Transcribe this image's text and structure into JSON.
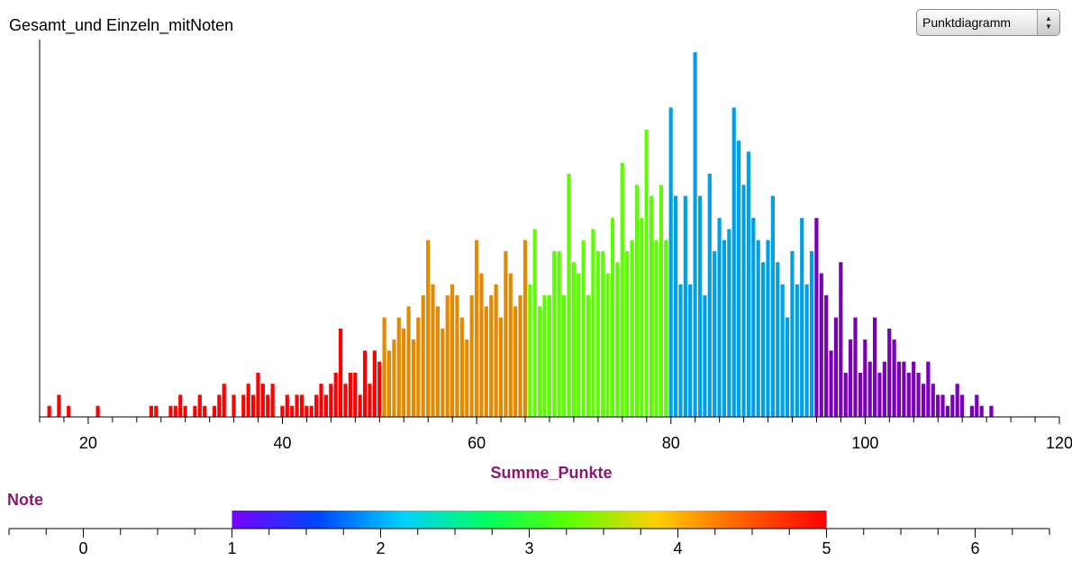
{
  "title": "Gesamt_und Einzeln_mitNoten",
  "dropdown": {
    "selected": "Punktdiagramm"
  },
  "chart_data": {
    "type": "bar",
    "title": "Gesamt_und Einzeln_mitNoten",
    "xlabel": "Summe_Punkte",
    "ylabel": "",
    "xlim": [
      15,
      120
    ],
    "x_ticks": [
      20,
      40,
      60,
      80,
      100,
      120
    ],
    "bin_width": 0.5,
    "bins": [
      [
        16,
        1
      ],
      [
        17,
        2
      ],
      [
        18,
        1
      ],
      [
        21,
        1
      ],
      [
        26.5,
        1
      ],
      [
        27,
        1
      ],
      [
        28.5,
        1
      ],
      [
        29,
        1
      ],
      [
        29.5,
        2
      ],
      [
        30,
        1
      ],
      [
        31,
        1
      ],
      [
        31.5,
        2
      ],
      [
        32,
        1
      ],
      [
        33,
        1
      ],
      [
        33.5,
        2
      ],
      [
        34,
        3
      ],
      [
        35,
        2
      ],
      [
        36,
        2
      ],
      [
        36.5,
        3
      ],
      [
        37,
        2
      ],
      [
        37.5,
        4
      ],
      [
        38,
        3
      ],
      [
        38.5,
        2
      ],
      [
        39,
        3
      ],
      [
        40,
        1
      ],
      [
        40.5,
        2
      ],
      [
        41,
        1
      ],
      [
        41.5,
        2
      ],
      [
        42,
        2
      ],
      [
        42.5,
        1
      ],
      [
        43,
        1
      ],
      [
        43.5,
        2
      ],
      [
        44,
        3
      ],
      [
        44.5,
        2
      ],
      [
        45,
        3
      ],
      [
        45.5,
        4
      ],
      [
        46,
        8
      ],
      [
        46.5,
        3
      ],
      [
        47,
        4
      ],
      [
        47.5,
        4
      ],
      [
        48,
        2
      ],
      [
        48.5,
        6
      ],
      [
        49,
        3
      ],
      [
        49.5,
        6
      ],
      [
        50,
        5
      ],
      [
        50.5,
        9
      ],
      [
        51,
        6
      ],
      [
        51.5,
        7
      ],
      [
        52,
        9
      ],
      [
        52.5,
        8
      ],
      [
        53,
        10
      ],
      [
        53.5,
        7
      ],
      [
        54,
        9
      ],
      [
        54.5,
        11
      ],
      [
        55,
        16
      ],
      [
        55.5,
        12
      ],
      [
        56,
        10
      ],
      [
        56.5,
        8
      ],
      [
        57,
        11
      ],
      [
        57.5,
        12
      ],
      [
        58,
        11
      ],
      [
        58.5,
        9
      ],
      [
        59,
        7
      ],
      [
        59.5,
        11
      ],
      [
        60,
        16
      ],
      [
        60.5,
        13
      ],
      [
        61,
        10
      ],
      [
        61.5,
        11
      ],
      [
        62,
        12
      ],
      [
        62.5,
        9
      ],
      [
        63,
        15
      ],
      [
        63.5,
        13
      ],
      [
        64,
        10
      ],
      [
        64.5,
        11
      ],
      [
        65,
        16
      ],
      [
        65.5,
        12
      ],
      [
        66,
        17
      ],
      [
        66.5,
        10
      ],
      [
        67,
        11
      ],
      [
        67.5,
        11
      ],
      [
        68,
        15
      ],
      [
        68.5,
        15
      ],
      [
        69,
        11
      ],
      [
        69.5,
        22
      ],
      [
        70,
        14
      ],
      [
        70.5,
        13
      ],
      [
        71,
        16
      ],
      [
        71.5,
        11
      ],
      [
        72,
        17
      ],
      [
        72.5,
        15
      ],
      [
        73,
        15
      ],
      [
        73.5,
        13
      ],
      [
        74,
        18
      ],
      [
        74.5,
        14
      ],
      [
        75,
        23
      ],
      [
        75.5,
        15
      ],
      [
        76,
        16
      ],
      [
        76.5,
        21
      ],
      [
        77,
        18
      ],
      [
        77.5,
        26
      ],
      [
        78,
        20
      ],
      [
        78.5,
        16
      ],
      [
        79,
        21
      ],
      [
        79.5,
        16
      ],
      [
        80,
        28
      ],
      [
        80.5,
        20
      ],
      [
        81,
        12
      ],
      [
        81.5,
        20
      ],
      [
        82,
        12
      ],
      [
        82.5,
        33
      ],
      [
        83,
        20
      ],
      [
        83.5,
        11
      ],
      [
        84,
        22
      ],
      [
        84.5,
        15
      ],
      [
        85,
        18
      ],
      [
        85.5,
        16
      ],
      [
        86,
        17
      ],
      [
        86.5,
        28
      ],
      [
        87,
        25
      ],
      [
        87.5,
        21
      ],
      [
        88,
        24
      ],
      [
        88.5,
        18
      ],
      [
        89,
        16
      ],
      [
        89.5,
        14
      ],
      [
        90,
        16
      ],
      [
        90.5,
        20
      ],
      [
        91,
        14
      ],
      [
        91.5,
        12
      ],
      [
        92,
        9
      ],
      [
        92.5,
        15
      ],
      [
        93,
        12
      ],
      [
        93.5,
        18
      ],
      [
        94,
        12
      ],
      [
        94.5,
        15
      ],
      [
        95,
        18
      ],
      [
        95.5,
        13
      ],
      [
        96,
        11
      ],
      [
        96.5,
        6
      ],
      [
        97,
        9
      ],
      [
        97.5,
        14
      ],
      [
        98,
        4
      ],
      [
        98.5,
        7
      ],
      [
        99,
        9
      ],
      [
        99.5,
        4
      ],
      [
        100,
        7
      ],
      [
        100.5,
        5
      ],
      [
        101,
        9
      ],
      [
        101.5,
        4
      ],
      [
        102,
        5
      ],
      [
        102.5,
        8
      ],
      [
        103,
        7
      ],
      [
        103.5,
        5
      ],
      [
        104,
        5
      ],
      [
        104.5,
        4
      ],
      [
        105,
        5
      ],
      [
        105.5,
        4
      ],
      [
        106,
        3
      ],
      [
        106.5,
        5
      ],
      [
        107,
        3
      ],
      [
        107.5,
        2
      ],
      [
        108,
        2
      ],
      [
        108.5,
        1
      ],
      [
        109,
        2
      ],
      [
        109.5,
        3
      ],
      [
        110,
        2
      ],
      [
        111,
        1
      ],
      [
        111.5,
        2
      ],
      [
        112,
        1
      ],
      [
        113,
        1
      ]
    ],
    "color_by": "Note",
    "color_bands": [
      {
        "from": 15,
        "to": 50.25,
        "note": 5,
        "color": "#ff0000"
      },
      {
        "from": 50.25,
        "to": 65.25,
        "note": 4,
        "color": "#e48a00"
      },
      {
        "from": 65.25,
        "to": 79.75,
        "note": 3,
        "color": "#5cff00"
      },
      {
        "from": 79.75,
        "to": 94.75,
        "note": 2,
        "color": "#00a0e6"
      },
      {
        "from": 94.75,
        "to": 120,
        "note": 1,
        "color": "#7a00b8"
      }
    ],
    "legend": {
      "title": "Note",
      "min": 1,
      "max": 5,
      "axis_range": [
        -0.5,
        6.5
      ],
      "ticks": [
        0,
        1,
        2,
        3,
        4,
        5,
        6
      ],
      "gradient_colors": [
        "#7a00ff",
        "#0044ff",
        "#00d0ff",
        "#00ff60",
        "#60ff00",
        "#ffd000",
        "#ff6000",
        "#ff0000"
      ]
    }
  }
}
